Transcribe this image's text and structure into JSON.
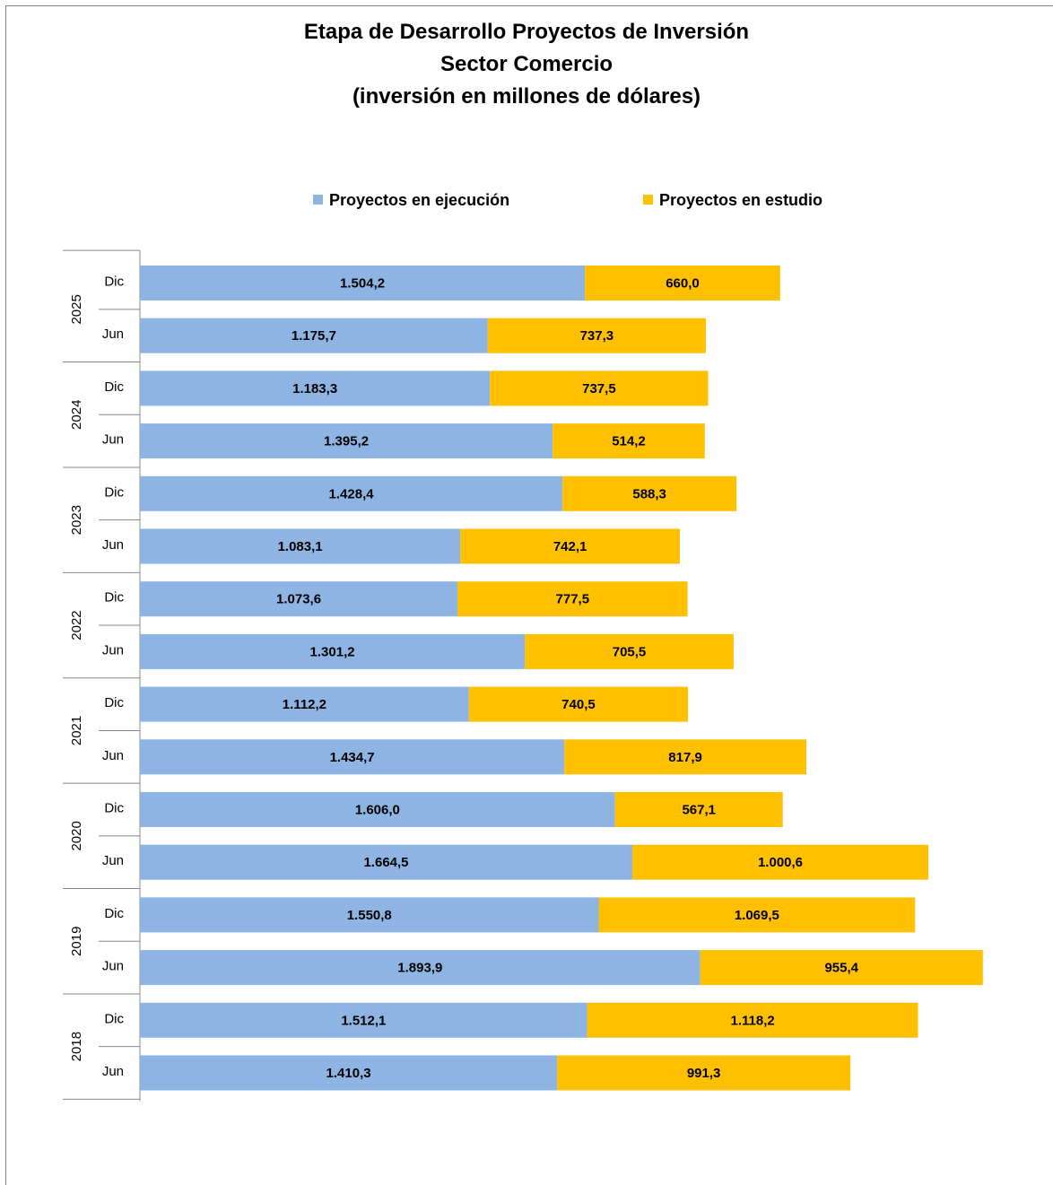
{
  "chart_data": {
    "type": "bar",
    "orientation": "horizontal",
    "stacked": true,
    "title_lines": [
      "Etapa de Desarrollo Proyectos de Inversión",
      "Sector Comercio",
      "(inversión en millones de dólares)"
    ],
    "legend_position": "top",
    "grid": false,
    "xlim": [
      0,
      2850
    ],
    "groups": [
      {
        "year": "2025",
        "periods": [
          "Dic",
          "Jun"
        ]
      },
      {
        "year": "2024",
        "periods": [
          "Dic",
          "Jun"
        ]
      },
      {
        "year": "2023",
        "periods": [
          "Dic",
          "Jun"
        ]
      },
      {
        "year": "2022",
        "periods": [
          "Dic",
          "Jun"
        ]
      },
      {
        "year": "2021",
        "periods": [
          "Dic",
          "Jun"
        ]
      },
      {
        "year": "2020",
        "periods": [
          "Dic",
          "Jun"
        ]
      },
      {
        "year": "2019",
        "periods": [
          "Dic",
          "Jun"
        ]
      },
      {
        "year": "2018",
        "periods": [
          "Dic",
          "Jun"
        ]
      }
    ],
    "series": [
      {
        "name": "Proyectos en ejecución",
        "color": "#8EB4E3",
        "values": [
          1504.2,
          1175.7,
          1183.3,
          1395.2,
          1428.4,
          1083.1,
          1073.6,
          1301.2,
          1112.2,
          1434.7,
          1606.0,
          1664.5,
          1550.8,
          1893.9,
          1512.1,
          1410.3
        ],
        "labels": [
          "1.504,2",
          "1.175,7",
          "1.183,3",
          "1.395,2",
          "1.428,4",
          "1.083,1",
          "1.073,6",
          "1.301,2",
          "1.112,2",
          "1.434,7",
          "1.606,0",
          "1.664,5",
          "1.550,8",
          "1.893,9",
          "1.512,1",
          "1.410,3"
        ]
      },
      {
        "name": "Proyectos en estudio",
        "color": "#FFC000",
        "values": [
          660.0,
          737.3,
          737.5,
          514.2,
          588.3,
          742.1,
          777.5,
          705.5,
          740.5,
          817.9,
          567.1,
          1000.6,
          1069.5,
          955.4,
          1118.2,
          991.3
        ],
        "labels": [
          "660,0",
          "737,3",
          "737,5",
          "514,2",
          "588,3",
          "742,1",
          "777,5",
          "705,5",
          "740,5",
          "817,9",
          "567,1",
          "1.000,6",
          "1.069,5",
          "955,4",
          "1.118,2",
          "991,3"
        ]
      }
    ]
  }
}
